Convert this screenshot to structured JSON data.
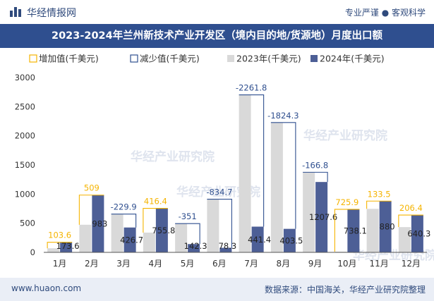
{
  "header": {
    "brand": "华经情报网",
    "slogan": "专业严谨 ● 客观科学"
  },
  "footer": {
    "website": "www.huaon.com",
    "source": "数据来源：中国海关，华经产业研究院整理"
  },
  "colors": {
    "increase": "#f5b400",
    "decrease": "#2f4f8f",
    "y2023": "#d9d9d9",
    "y2024": "#4d5f96",
    "title_bg": "#2f4f8f"
  },
  "chart_data": {
    "type": "bar",
    "title": "2023-2024年兰州新技术产业开发区（境内目的地/货源地）月度出口额",
    "categories": [
      "1月",
      "2月",
      "3月",
      "4月",
      "5月",
      "6月",
      "7月",
      "8月",
      "9月",
      "10月",
      "11月",
      "12月"
    ],
    "series": [
      {
        "name": "2023年(千美元)",
        "values": [
          70,
          474,
          656.6,
          339.4,
          493.3,
          913,
          2703.2,
          2227.8,
          1374.4,
          12.2,
          746.5,
          433.9
        ]
      },
      {
        "name": "2024年(千美元)",
        "values": [
          173.6,
          983,
          426.7,
          755.8,
          142.3,
          78.3,
          441.4,
          403.5,
          1207.6,
          738.1,
          880,
          640.3
        ]
      }
    ],
    "value_labels_2024": [
      "173.6",
      "983",
      "426.7",
      "755.8",
      "142.3",
      "78.3",
      "441.4",
      "403.5",
      "1207.6",
      "738.1",
      "880",
      "640.3"
    ],
    "changes": [
      103.6,
      509,
      -229.9,
      416.4,
      -351,
      -834.7,
      -2261.8,
      -1824.3,
      -166.8,
      725.9,
      133.5,
      206.4
    ],
    "change_labels": [
      "103.6",
      "509",
      "-229.9",
      "416.4",
      "-351",
      "-834.7",
      "-2261.8",
      "-1824.3",
      "-166.8",
      "725.9",
      "133.5",
      "206.4"
    ],
    "legend": [
      "增加值(千美元)",
      "减少值(千美元)",
      "2023年(千美元)",
      "2024年(千美元)"
    ],
    "legend_position": "top-left",
    "yticks": [
      "0",
      "500",
      "1000",
      "1500",
      "2000",
      "2500",
      "3000"
    ],
    "ylim": [
      0,
      3000
    ],
    "grid": false
  }
}
